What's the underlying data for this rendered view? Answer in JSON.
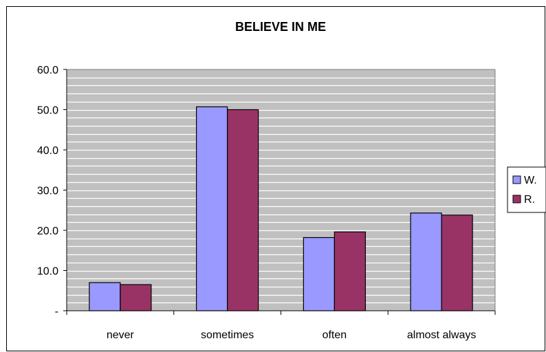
{
  "chart_data": {
    "type": "bar",
    "title": "BELIEVE IN ME",
    "categories": [
      "never",
      "sometimes",
      "often",
      "almost always"
    ],
    "series": [
      {
        "name": "W.",
        "values": [
          7.0,
          50.7,
          18.2,
          24.3
        ],
        "color": "#9999ff"
      },
      {
        "name": "R.",
        "values": [
          6.5,
          50.0,
          19.6,
          23.8
        ],
        "color": "#993366"
      }
    ],
    "ylim": [
      0,
      60
    ],
    "yticks": [
      {
        "value": 0,
        "label": "-"
      },
      {
        "value": 10,
        "label": "10.0"
      },
      {
        "value": 20,
        "label": "20.0"
      },
      {
        "value": 30,
        "label": "30.0"
      },
      {
        "value": 40,
        "label": "40.0"
      },
      {
        "value": 50,
        "label": "50.0"
      },
      {
        "value": 60,
        "label": "60.0"
      }
    ],
    "plot_background": "#c0c0c0",
    "gridline_color": "#ffffff",
    "grid": true,
    "legend_position": "right"
  }
}
